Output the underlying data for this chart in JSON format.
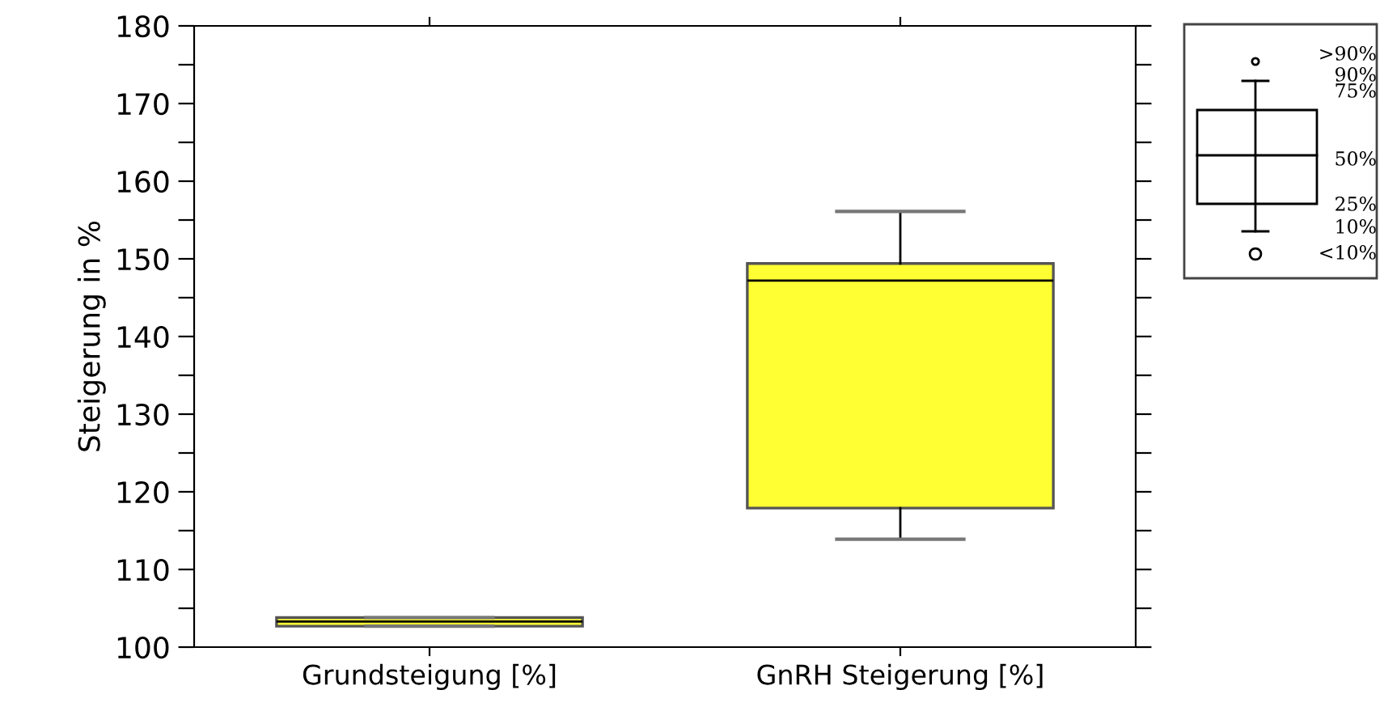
{
  "chart_data": {
    "type": "box",
    "ylabel": "Steigerung in %",
    "categories": [
      "Grundsteigung [%]",
      "GnRH Steigerung [%]"
    ],
    "boxes": [
      {
        "low": 102.7,
        "q1": 102.7,
        "median": 103.3,
        "q3": 103.8,
        "high": 103.8
      },
      {
        "low": 113.9,
        "q1": 117.9,
        "median": 147.2,
        "q3": 149.4,
        "high": 156.1
      }
    ],
    "color": "#ffff33",
    "ylim": [
      100,
      180
    ],
    "yticks": [
      100,
      {
        "value": 105,
        "label": null
      },
      110,
      {
        "value": 115,
        "label": null
      },
      120,
      {
        "value": 125,
        "label": null
      },
      130,
      {
        "value": 135,
        "label": null
      },
      140,
      {
        "value": 145,
        "label": null
      },
      150,
      {
        "value": 155,
        "label": null
      },
      160,
      {
        "value": 165,
        "label": null
      },
      170,
      {
        "value": 175,
        "label": null
      },
      180
    ],
    "grid": false,
    "legend": false,
    "annotations": [
      ">90%",
      "90%",
      "75%",
      "50%",
      "25%",
      "10%",
      "<10%"
    ]
  }
}
